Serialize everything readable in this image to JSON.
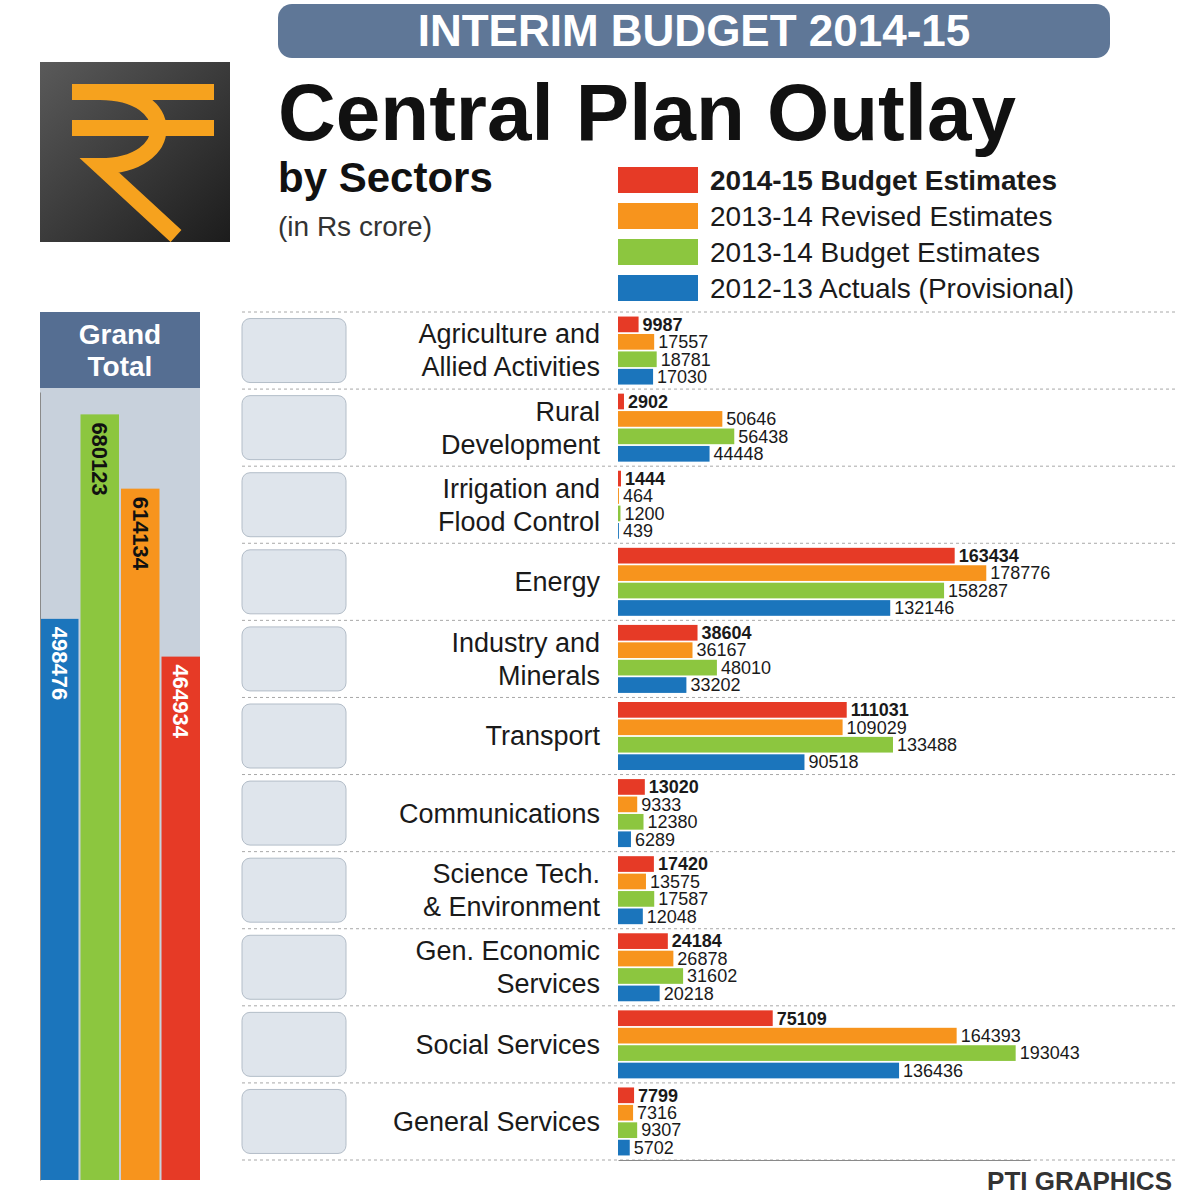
{
  "chart_data": [
    {
      "type": "bar",
      "orientation": "horizontal",
      "title": "Central Plan Outlay",
      "subtitle": "by Sectors",
      "annotations": [
        "INTERIM BUDGET 2014-15",
        "(in Rs crore)",
        "PTI GRAPHICS"
      ],
      "categories": [
        "Agriculture and Allied Activities",
        "Rural Development",
        "Irrigation and Flood Control",
        "Energy",
        "Industry and Minerals",
        "Transport",
        "Communications",
        "Science Tech. & Environment",
        "Gen. Economic Services",
        "Social Services",
        "General Services"
      ],
      "series": [
        {
          "name": "2014-15 Budget Estimates",
          "color": "#e63a26",
          "values": [
            9987,
            2902,
            1444,
            163434,
            38604,
            111031,
            13020,
            17420,
            24184,
            75109,
            7799
          ]
        },
        {
          "name": "2013-14 Revised Estimates",
          "color": "#f7941d",
          "values": [
            17557,
            50646,
            464,
            178776,
            36167,
            109029,
            9333,
            13575,
            26878,
            164393,
            7316
          ]
        },
        {
          "name": "2013-14 Budget Estimates",
          "color": "#8cc63f",
          "values": [
            18781,
            56438,
            1200,
            158287,
            48010,
            133488,
            12380,
            17587,
            31602,
            193043,
            9307
          ]
        },
        {
          "name": "2012-13 Actuals (Provisional)",
          "color": "#1b75bc",
          "values": [
            17030,
            44448,
            439,
            132146,
            33202,
            90518,
            6289,
            12048,
            20218,
            136436,
            5702
          ]
        }
      ],
      "xlim": [
        0,
        200000
      ],
      "xticks": [],
      "tick_labels": "y",
      "legend": "top-right",
      "data_labels": true,
      "grid": false
    },
    {
      "type": "bar",
      "title": "Grand Total",
      "categories": [
        null,
        null,
        null,
        null
      ],
      "values": [
        498476,
        680123,
        614134,
        464934
      ],
      "colors": [
        "#1b75bc",
        "#8cc63f",
        "#f7941d",
        "#e63a26"
      ],
      "ylim": [
        0,
        700000
      ],
      "yticks": [],
      "tick_labels": false,
      "data_labels": true,
      "grid": false
    }
  ]
}
